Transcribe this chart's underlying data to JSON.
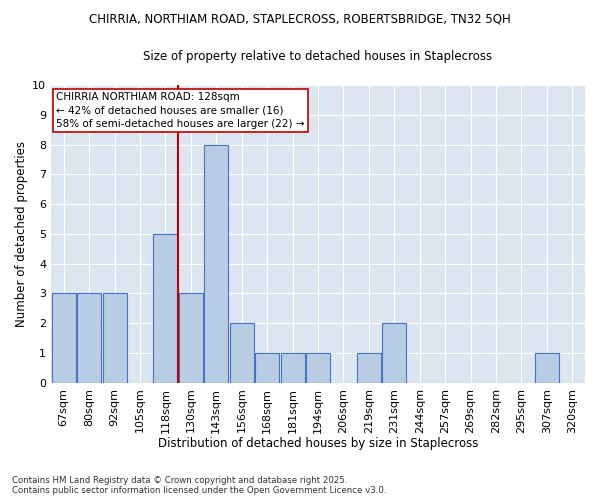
{
  "title_line1": "CHIRRIA, NORTHIAM ROAD, STAPLECROSS, ROBERTSBRIDGE, TN32 5QH",
  "title_line2": "Size of property relative to detached houses in Staplecross",
  "xlabel": "Distribution of detached houses by size in Staplecross",
  "ylabel": "Number of detached properties",
  "categories": [
    "67sqm",
    "80sqm",
    "92sqm",
    "105sqm",
    "118sqm",
    "130sqm",
    "143sqm",
    "156sqm",
    "168sqm",
    "181sqm",
    "194sqm",
    "206sqm",
    "219sqm",
    "231sqm",
    "244sqm",
    "257sqm",
    "269sqm",
    "282sqm",
    "295sqm",
    "307sqm",
    "320sqm"
  ],
  "values": [
    3,
    3,
    3,
    0,
    5,
    3,
    8,
    2,
    1,
    1,
    1,
    0,
    1,
    2,
    0,
    0,
    0,
    0,
    0,
    1,
    0
  ],
  "bar_color": "#b8cce4",
  "bar_edge_color": "#4472c4",
  "line_x_index": 5,
  "line_color": "#c00000",
  "annotation_text": "CHIRRIA NORTHIAM ROAD: 128sqm\n← 42% of detached houses are smaller (16)\n58% of semi-detached houses are larger (22) →",
  "annotation_box_color": "#ffffff",
  "annotation_box_edge": "#c00000",
  "ylim": [
    0,
    10
  ],
  "yticks": [
    0,
    1,
    2,
    3,
    4,
    5,
    6,
    7,
    8,
    9,
    10
  ],
  "bg_color": "#dce6f1",
  "footer_line1": "Contains HM Land Registry data © Crown copyright and database right 2025.",
  "footer_line2": "Contains public sector information licensed under the Open Government Licence v3.0.",
  "fig_width": 6.0,
  "fig_height": 5.0
}
